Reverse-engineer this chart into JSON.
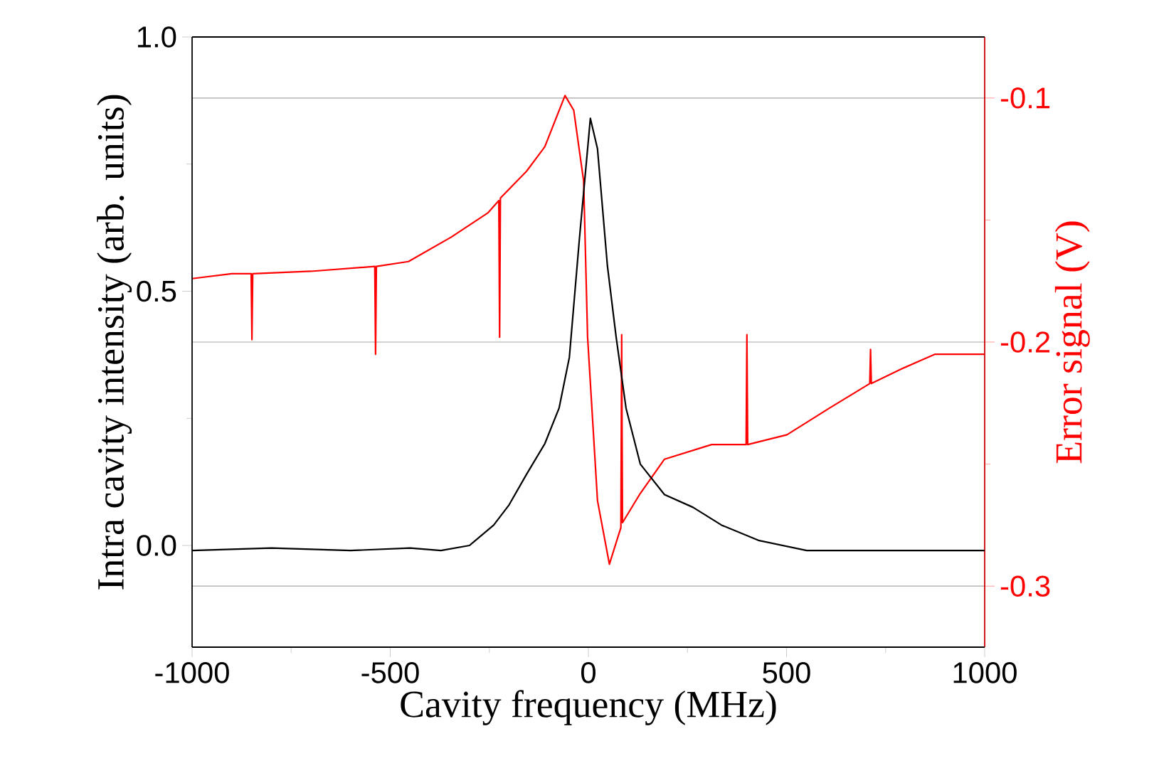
{
  "chart_data": {
    "type": "line",
    "xlabel": "Cavity frequency (MHz)",
    "ylabel": "Intra cavity intensity (arb. units)",
    "y2label": "Error signal (V)",
    "xlim": [
      -1000,
      1000
    ],
    "ylim": [
      -0.2,
      1.0
    ],
    "y2lim": [
      -0.325,
      -0.075
    ],
    "xticks": [
      -1000,
      {
        "value": -750,
        "label": null
      },
      -500,
      {
        "value": -250,
        "label": null
      },
      0,
      {
        "value": 250,
        "label": null
      },
      500,
      {
        "value": 750,
        "label": null
      },
      1000
    ],
    "yticks": [
      {
        "value": 0,
        "label": "0.0"
      },
      {
        "value": 0.25,
        "label": null
      },
      {
        "value": 0.5,
        "label": "0.5"
      },
      {
        "value": 0.75,
        "label": null
      },
      {
        "value": 1.0,
        "label": "1.0"
      }
    ],
    "y2ticks": [
      -0.3,
      {
        "value": -0.25,
        "label": null
      },
      -0.2,
      {
        "value": -0.15,
        "label": null
      },
      -0.1
    ],
    "grid": "y2",
    "series": [
      {
        "color": "#000000",
        "x": [
          -1000,
          -800,
          -600,
          -450,
          -372,
          -300,
          -239,
          -200,
          -156,
          -110,
          -74,
          -48,
          -23,
          5,
          23,
          48,
          70,
          95,
          131,
          192,
          264,
          336,
          429,
          551,
          790,
          1000
        ],
        "values": [
          -0.01,
          -0.005,
          -0.01,
          -0.005,
          -0.01,
          0.0,
          0.04,
          0.08,
          0.14,
          0.2,
          0.27,
          0.37,
          0.6,
          0.84,
          0.78,
          0.55,
          0.41,
          0.27,
          0.16,
          0.1,
          0.075,
          0.04,
          0.01,
          -0.01,
          -0.01,
          -0.01
        ]
      },
      {
        "color": "#ff0000",
        "axis": "y2",
        "x": [
          -1000,
          -900,
          -851,
          -849,
          -847,
          -700,
          -539,
          -537,
          -535,
          -454,
          -346,
          -253,
          -226,
          -224,
          -222,
          -156,
          -110,
          -59,
          -37,
          -12,
          -2,
          23,
          53,
          82,
          84,
          86,
          131,
          192,
          311,
          398,
          400,
          402,
          501,
          609,
          710,
          712,
          714,
          790,
          874,
          1000
        ],
        "values": [
          -0.174,
          -0.172,
          -0.172,
          -0.199,
          -0.172,
          -0.171,
          -0.169,
          -0.205,
          -0.169,
          -0.167,
          -0.157,
          -0.147,
          -0.142,
          -0.198,
          -0.141,
          -0.13,
          -0.12,
          -0.099,
          -0.105,
          -0.134,
          -0.198,
          -0.265,
          -0.291,
          -0.276,
          -0.197,
          -0.274,
          -0.262,
          -0.248,
          -0.242,
          -0.242,
          -0.197,
          -0.242,
          -0.238,
          -0.227,
          -0.217,
          -0.203,
          -0.217,
          -0.211,
          -0.205,
          -0.205
        ]
      }
    ]
  }
}
